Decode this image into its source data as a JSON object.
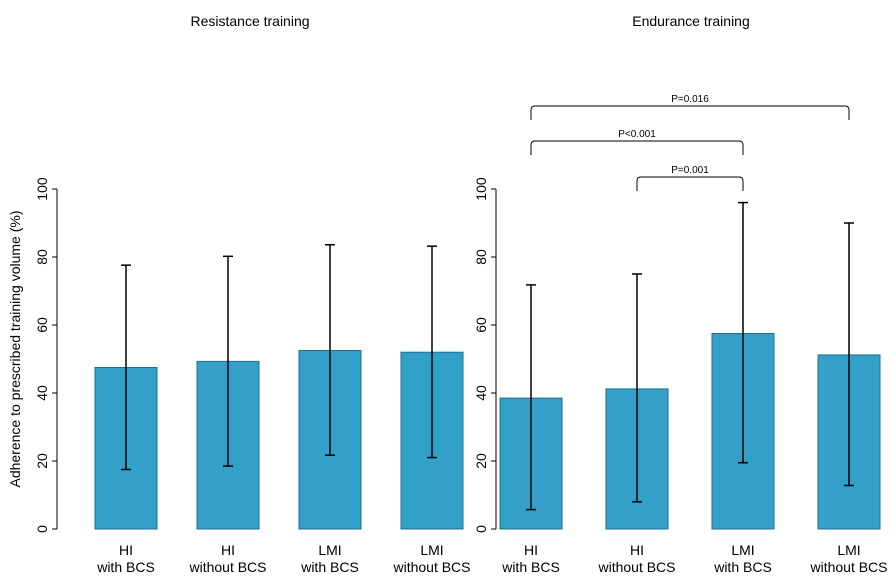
{
  "colors": {
    "bar": "#33a0ca",
    "bar_edge": "#1f6e8e",
    "axis": "#000000",
    "background": "#ffffff"
  },
  "chart_data": [
    {
      "type": "bar",
      "title": "Resistance training",
      "ylabel": "Adherence to prescribed training volume (%)",
      "xlabel": "",
      "ylim": [
        0,
        100
      ],
      "yticks": [
        "0",
        "20",
        "40",
        "60",
        "80",
        "100"
      ],
      "grid": false,
      "categories": [
        [
          "HI",
          "with BCS"
        ],
        [
          "HI",
          "without BCS"
        ],
        [
          "LMI",
          "with BCS"
        ],
        [
          "LMI",
          "without BCS"
        ]
      ],
      "values": [
        47.5,
        49.3,
        52.5,
        52.0
      ],
      "error_bars": [
        [
          17.5,
          77.6
        ],
        [
          18.5,
          80.2
        ],
        [
          21.7,
          83.6
        ],
        [
          21.0,
          83.2
        ]
      ],
      "annotations": []
    },
    {
      "type": "bar",
      "title": "Endurance training",
      "ylabel": "",
      "xlabel": "",
      "ylim": [
        0,
        100
      ],
      "yticks": [
        "0",
        "20",
        "40",
        "60",
        "80",
        "100"
      ],
      "grid": false,
      "categories": [
        [
          "HI",
          "with BCS"
        ],
        [
          "HI",
          "without BCS"
        ],
        [
          "LMI",
          "with BCS"
        ],
        [
          "LMI",
          "without BCS"
        ]
      ],
      "values": [
        38.5,
        41.2,
        57.5,
        51.2
      ],
      "error_bars": [
        [
          5.7,
          71.8
        ],
        [
          8.0,
          75.0
        ],
        [
          19.5,
          96.0
        ],
        [
          12.8,
          90.0
        ]
      ],
      "annotations": [
        {
          "text": "P=0.016",
          "from": 0,
          "to": 3,
          "level": 3
        },
        {
          "text": "P<0.001",
          "from": 0,
          "to": 2,
          "level": 2
        },
        {
          "text": "P=0.001",
          "from": 1,
          "to": 2,
          "level": 1
        }
      ]
    }
  ]
}
